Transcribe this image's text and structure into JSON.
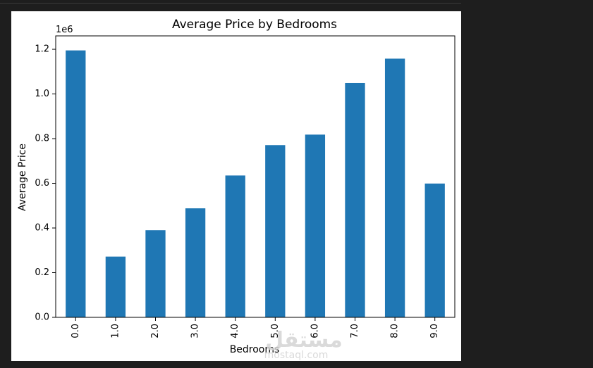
{
  "chart_data": {
    "type": "bar",
    "title": "Average Price by Bedrooms",
    "xlabel": "Bedrooms",
    "ylabel": "Average Price",
    "offset_text": "1e6",
    "categories": [
      "0.0",
      "1.0",
      "2.0",
      "3.0",
      "4.0",
      "5.0",
      "6.0",
      "7.0",
      "8.0",
      "9.0"
    ],
    "values": [
      1195000,
      272000,
      390000,
      488000,
      635000,
      771000,
      818000,
      1049000,
      1158000,
      599000
    ],
    "ylim": [
      0,
      1260000
    ],
    "yticks": [
      0,
      200000,
      400000,
      600000,
      800000,
      1000000,
      1200000
    ],
    "ytick_labels": [
      "0.0",
      "0.2",
      "0.4",
      "0.6",
      "0.8",
      "1.0",
      "1.2"
    ],
    "grid": false,
    "bar_color": "#1f77b4"
  },
  "watermark": {
    "arabic": "مستقل",
    "latin": "mostaql.com"
  }
}
